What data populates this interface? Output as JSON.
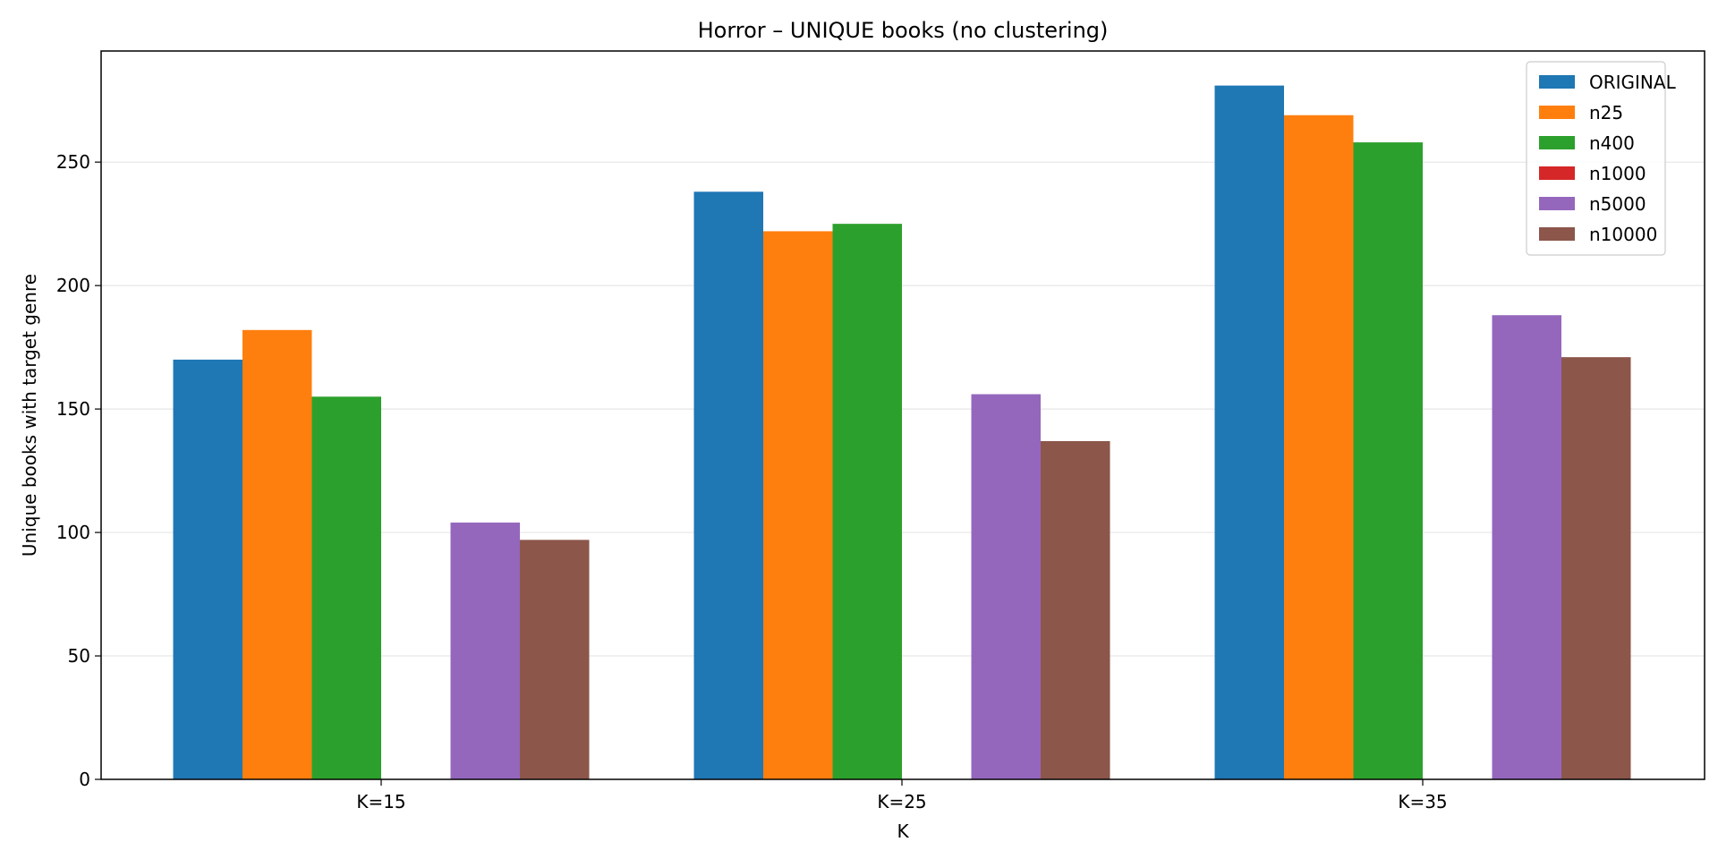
{
  "chart_data": {
    "type": "bar",
    "title": "Horror – UNIQUE books (no clustering)",
    "xlabel": "K",
    "ylabel": "Unique books with target genre",
    "categories": [
      "K=15",
      "K=25",
      "K=35"
    ],
    "ylim": [
      0,
      295
    ],
    "yticks": [
      0,
      50,
      100,
      150,
      200,
      250
    ],
    "grid": "horizontal",
    "legend_position": "top-right",
    "series": [
      {
        "name": "ORIGINAL",
        "color": "#1f77b4",
        "values": [
          170,
          238,
          281
        ]
      },
      {
        "name": "n25",
        "color": "#ff7f0e",
        "values": [
          182,
          222,
          269
        ]
      },
      {
        "name": "n400",
        "color": "#2ca02c",
        "values": [
          155,
          225,
          258
        ]
      },
      {
        "name": "n1000",
        "color": "#d62728",
        "values": [
          0,
          0,
          0
        ]
      },
      {
        "name": "n5000",
        "color": "#9467bd",
        "values": [
          104,
          156,
          188
        ]
      },
      {
        "name": "n10000",
        "color": "#8c564b",
        "values": [
          97,
          137,
          171
        ]
      }
    ]
  }
}
